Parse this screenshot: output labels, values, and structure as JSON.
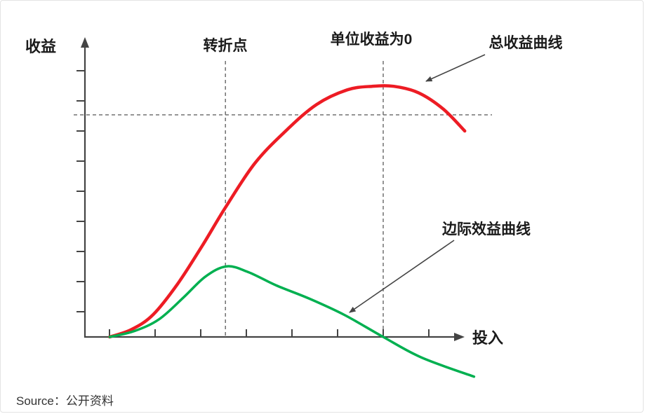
{
  "page": {
    "source_label": "Source：公开资料"
  },
  "chart_data": {
    "type": "line",
    "title": "",
    "xlabel": "投入",
    "ylabel": "收益",
    "x_range": [
      0,
      12.6
    ],
    "y_range": [
      -1.5,
      10
    ],
    "grid": false,
    "legend_position": "annotated-arrows",
    "axis": {
      "x_tick_count": 8,
      "y_tick_count": 9
    },
    "series": [
      {
        "name": "总收益曲线",
        "color": "#ed1c24",
        "width": 4.5,
        "points": [
          [
            0.8,
            0.0
          ],
          [
            1.5,
            0.25
          ],
          [
            2.2,
            0.75
          ],
          [
            3.0,
            1.8
          ],
          [
            3.8,
            3.1
          ],
          [
            4.55,
            4.4
          ],
          [
            5.5,
            5.9
          ],
          [
            6.5,
            7.0
          ],
          [
            7.5,
            7.9
          ],
          [
            8.5,
            8.4
          ],
          [
            9.3,
            8.52
          ],
          [
            10.0,
            8.52
          ],
          [
            10.8,
            8.3
          ],
          [
            11.6,
            7.75
          ],
          [
            12.3,
            7.0
          ]
        ]
      },
      {
        "name": "边际效益曲线",
        "color": "#00b050",
        "width": 3.5,
        "points": [
          [
            0.8,
            0.0
          ],
          [
            1.6,
            0.2
          ],
          [
            2.4,
            0.6
          ],
          [
            3.2,
            1.35
          ],
          [
            3.9,
            2.05
          ],
          [
            4.59,
            2.4
          ],
          [
            5.3,
            2.2
          ],
          [
            6.2,
            1.75
          ],
          [
            7.27,
            1.3
          ],
          [
            8.4,
            0.75
          ],
          [
            9.66,
            0.0
          ],
          [
            10.9,
            -0.7
          ],
          [
            12.6,
            -1.35
          ]
        ]
      }
    ],
    "annotations": {
      "turning_point": {
        "label": "转折点",
        "x": 4.55
      },
      "zero_unit": {
        "label": "单位收益为0",
        "x": 9.66
      },
      "max_revenue_line_y": 7.55
    },
    "colors": {
      "axis": "#444444",
      "dashed": "#666666",
      "arrow": "#444444"
    }
  }
}
